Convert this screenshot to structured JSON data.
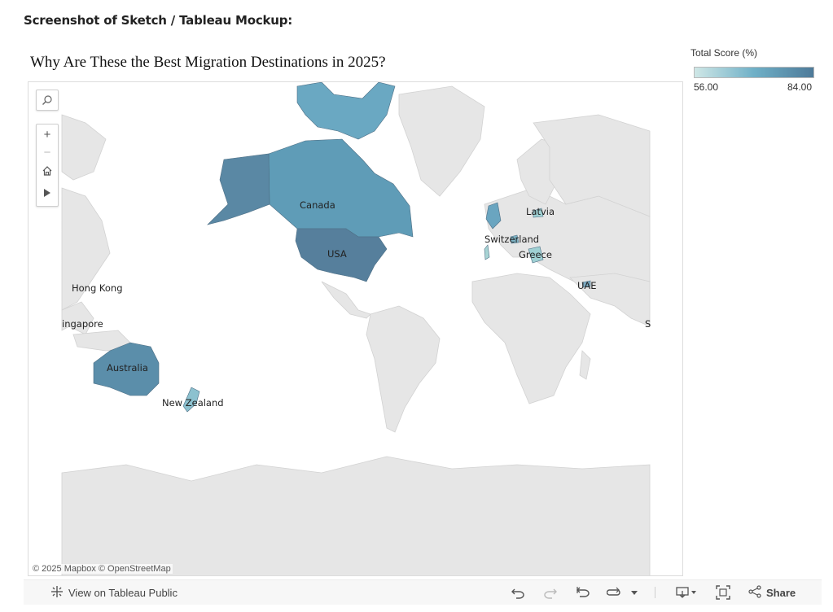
{
  "page": {
    "heading": "Screenshot of Sketch / Tableau Mockup:"
  },
  "viz": {
    "title": "Why Are These the Best Migration Destinations in 2025?"
  },
  "legend": {
    "title": "Total Score (%)",
    "min_label": "56.00",
    "max_label": "84.00",
    "min_value": 56,
    "max_value": 84,
    "color_low": "#cfe7e6",
    "color_high": "#4e7a99"
  },
  "map": {
    "credit": "© 2025 Mapbox  © OpenStreetMap",
    "land_color": "#e6e6e6",
    "water_color": "#ffffff",
    "controls": {
      "search_icon": "search-icon",
      "zoom_in_label": "+",
      "zoom_out_label": "−",
      "home_icon": "home-icon",
      "pan_icon": "play-icon"
    },
    "country_labels": {
      "canada": "Canada",
      "usa": "USA",
      "australia": "Australia",
      "new_zealand": "New Zealand",
      "latvia": "Latvia",
      "switzerland": "Switzerland",
      "greece": "Greece",
      "uae": "UAE",
      "hong_kong": "Hong Kong",
      "singapore": "ingapore",
      "s_label": "S"
    }
  },
  "toolbar": {
    "view_on_public": "View on Tableau Public",
    "share": "Share",
    "icons": [
      "undo-icon",
      "redo-icon",
      "revert-icon",
      "refresh-icon",
      "dropdown-icon",
      "download-icon",
      "fullscreen-icon",
      "share-icon"
    ]
  }
}
